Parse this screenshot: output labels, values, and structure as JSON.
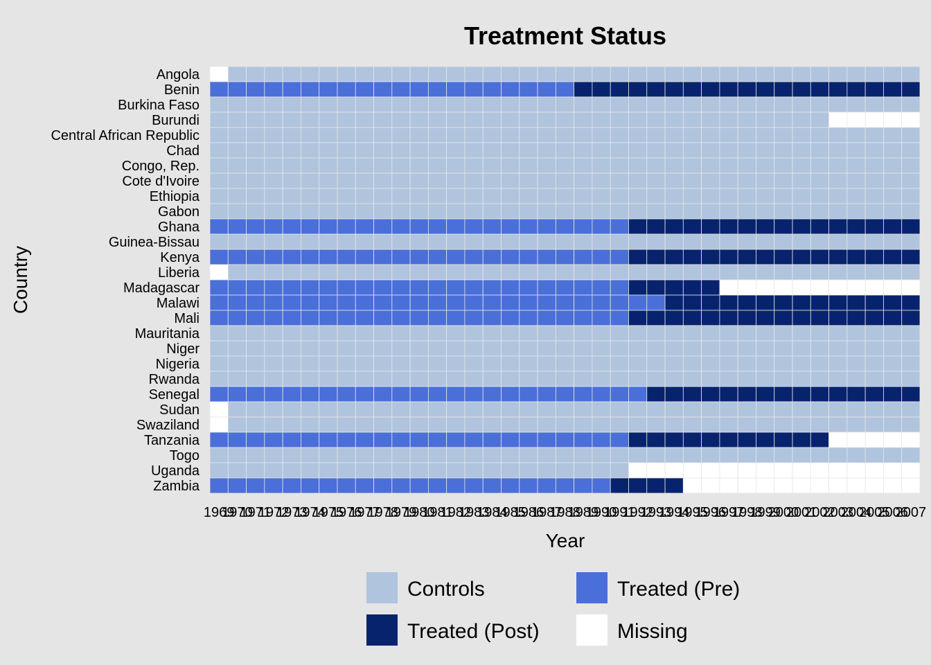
{
  "chart_data": {
    "type": "heatmap",
    "title": "Treatment Status",
    "xlabel": "Year",
    "ylabel": "Country",
    "x": [
      "1969",
      "1970",
      "1971",
      "1972",
      "1973",
      "1974",
      "1975",
      "1976",
      "1977",
      "1978",
      "1979",
      "1980",
      "1981",
      "1982",
      "1983",
      "1984",
      "1985",
      "1986",
      "1987",
      "1988",
      "1989",
      "1990",
      "1991",
      "1992",
      "1993",
      "1994",
      "1995",
      "1996",
      "1997",
      "1998",
      "1999",
      "2000",
      "2001",
      "2002",
      "2003",
      "2004",
      "2005",
      "2006",
      "2007"
    ],
    "y": [
      "Angola",
      "Benin",
      "Burkina Faso",
      "Burundi",
      "Central African Republic",
      "Chad",
      "Congo, Rep.",
      "Cote d'Ivoire",
      "Ethiopia",
      "Gabon",
      "Ghana",
      "Guinea-Bissau",
      "Kenya",
      "Liberia",
      "Madagascar",
      "Malawi",
      "Mali",
      "Mauritania",
      "Niger",
      "Nigeria",
      "Rwanda",
      "Senegal",
      "Sudan",
      "Swaziland",
      "Tanzania",
      "Togo",
      "Uganda",
      "Zambia"
    ],
    "legend": {
      "placement": "bottom",
      "entries": [
        {
          "label": "Controls",
          "code": "C",
          "color": "#b0c4de"
        },
        {
          "label": "Treated (Pre)",
          "code": "P",
          "color": "#4a6fd8"
        },
        {
          "label": "Treated (Post)",
          "code": "T",
          "color": "#08236e"
        },
        {
          "label": "Missing",
          "code": "M",
          "color": "#ffffff"
        }
      ]
    },
    "status_by_country": [
      "MCCCCCCCCCCCCCCCCCCCCCCCCCCCCCCCCCCCCCC",
      "PPPPPPPPPPPPPPPPPPPPTTTTTTTTTTTTTTTTTTT",
      "CCCCCCCCCCCCCCCCCCCCCCCCCCCCCCCCCCCCCCC",
      "CCCCCCCCCCCCCCCCCCCCCCCCCCCCCCCCCCMMMMM",
      "CCCCCCCCCCCCCCCCCCCCCCCCCCCCCCCCCCCCCCC",
      "CCCCCCCCCCCCCCCCCCCCCCCCCCCCCCCCCCCCCCC",
      "CCCCCCCCCCCCCCCCCCCCCCCCCCCCCCCCCCCCCCC",
      "CCCCCCCCCCCCCCCCCCCCCCCCCCCCCCCCCCCCCCC",
      "CCCCCCCCCCCCCCCCCCCCCCCCCCCCCCCCCCCCCCC",
      "CCCCCCCCCCCCCCCCCCCCCCCCCCCCCCCCCCCCCCC",
      "PPPPPPPPPPPPPPPPPPPPPPPTTTTTTTTTTTTTTTT",
      "CCCCCCCCCCCCCCCCCCCCCCCCCCCCCCCCCCCCCCC",
      "PPPPPPPPPPPPPPPPPPPPPPPTTTTTTTTTTTTTTTT",
      "MCCCCCCCCCCCCCCCCCCCCCCCCCCCCCCCCCCCCCC",
      "PPPPPPPPPPPPPPPPPPPPPPPTTTTTMMMMMMMMMMM",
      "PPPPPPPPPPPPPPPPPPPPPPPPPTTTTTTTTTTTTTT",
      "PPPPPPPPPPPPPPPPPPPPPPPTTTTTTTTTTTTTTTT",
      "CCCCCCCCCCCCCCCCCCCCCCCCCCCCCCCCCCCCCCC",
      "CCCCCCCCCCCCCCCCCCCCCCCCCCCCCCCCCCCCCCC",
      "CCCCCCCCCCCCCCCCCCCCCCCCCCCCCCCCCCCCCCC",
      "CCCCCCCCCCCCCCCCCCCCCCCCCCCCCCCCCCCCCCC",
      "PPPPPPPPPPPPPPPPPPPPPPPPTTTTTTTTTTTTTTT",
      "MCCCCCCCCCCCCCCCCCCCCCCCCCCCCCCCCCCCCCC",
      "MCCCCCCCCCCCCCCCCCCCCCCCCCCCCCCCCCCCCCC",
      "PPPPPPPPPPPPPPPPPPPPPPPTTTTTTTTTTTMMMMM",
      "CCCCCCCCCCCCCCCCCCCCCCCCCCCCCCCCCCCCCCC",
      "CCCCCCCCCCCCCCCCCCCCCCCMMMMMMMMMMMMMMMM",
      "PPPPPPPPPPPPPPPPPPPPPPTTTTMMMMMMMMMMMMM"
    ],
    "grid": true
  }
}
